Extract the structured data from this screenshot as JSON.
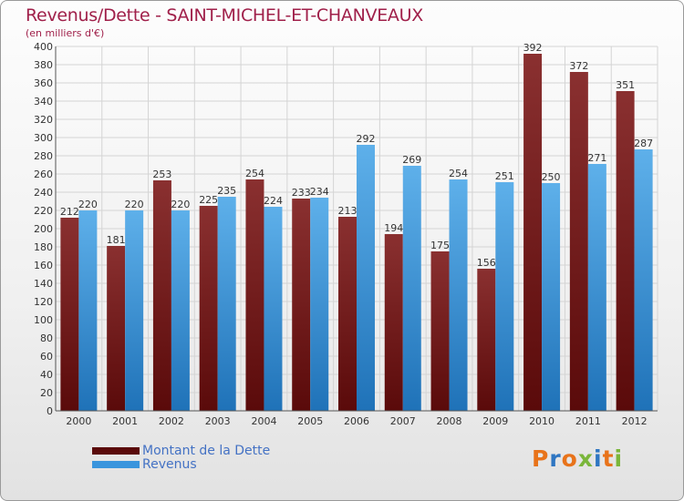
{
  "title": "Revenus/Dette - SAINT-MICHEL-ET-CHANVEAUX",
  "subtitle": "(en milliers d'€)",
  "logo": {
    "text": "Proxiti",
    "colors": [
      "#e8731a",
      "#2f76c2",
      "#e8731a",
      "#7ab63a",
      "#2f76c2",
      "#e8731a",
      "#7ab63a"
    ]
  },
  "colors": {
    "dette_dark": "#5a0a0a",
    "dette_light": "#8a3030",
    "revenus_dark": "#1f72b8",
    "revenus_light": "#5eb0ea",
    "title": "#a0204a"
  },
  "chart_data": {
    "type": "bar",
    "categories": [
      "2000",
      "2001",
      "2002",
      "2003",
      "2004",
      "2005",
      "2006",
      "2007",
      "2008",
      "2009",
      "2010",
      "2011",
      "2012"
    ],
    "series": [
      {
        "name": "Montant de la Dette",
        "values": [
          212,
          181,
          253,
          225,
          254,
          233,
          213,
          194,
          175,
          156,
          392,
          372,
          351
        ]
      },
      {
        "name": "Revenus",
        "values": [
          220,
          220,
          220,
          235,
          224,
          234,
          292,
          269,
          254,
          251,
          250,
          271,
          287
        ]
      }
    ],
    "ylim": [
      0,
      400
    ],
    "ytick_step": 20,
    "grid": true,
    "legend_position": "bottom-left"
  }
}
